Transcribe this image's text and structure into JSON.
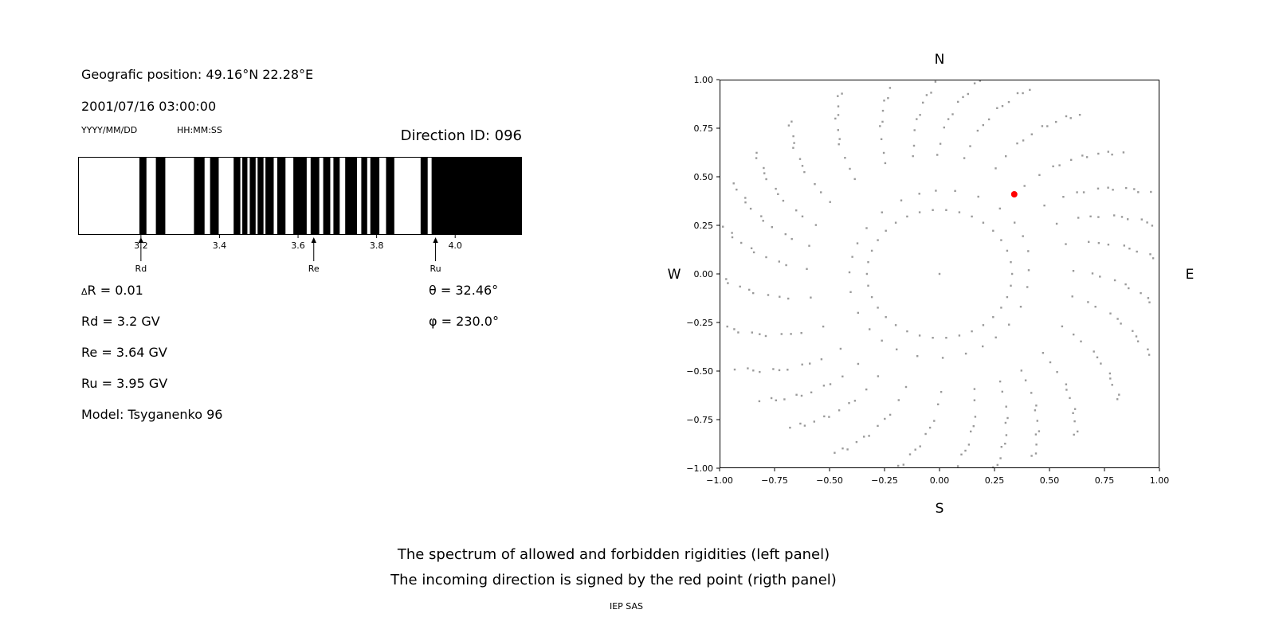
{
  "left_panel": {
    "geo_position": "Geografic position: 49.16°N 22.28°E",
    "datetime": "2001/07/16 03:00:00",
    "date_format_hint": "YYYY/MM/DD",
    "time_format_hint": "HH:MM:SS",
    "direction_id": "Direction ID: 096",
    "delta_r": "ΔR = 0.01",
    "rd": "Rd = 3.2 GV",
    "re": "Re = 3.64 GV",
    "ru": "Ru = 3.95 GV",
    "model": "Model: Tsyganenko 96",
    "theta": "θ = 32.46°",
    "phi": "φ = 230.0°"
  },
  "caption": {
    "line1": "The spectrum of allowed and forbidden rigidities (left panel)",
    "line2": "The incoming direction is signed by the red point (rigth panel)",
    "credit": "IEP SAS"
  },
  "chart_data": [
    {
      "type": "bar",
      "description": "Binary rigidity spectrum: black bands over white background, rigidity in GV on x axis",
      "xlim": [
        3.04,
        4.17
      ],
      "xticks": [
        3.2,
        3.4,
        3.6,
        3.8,
        4.0
      ],
      "xtick_labels": [
        "3.2",
        "3.4",
        "3.6",
        "3.8",
        "4.0"
      ],
      "black_intervals": [
        [
          3.196,
          3.214
        ],
        [
          3.238,
          3.262
        ],
        [
          3.335,
          3.362
        ],
        [
          3.376,
          3.398
        ],
        [
          3.436,
          3.453
        ],
        [
          3.458,
          3.471
        ],
        [
          3.477,
          3.492
        ],
        [
          3.497,
          3.512
        ],
        [
          3.517,
          3.538
        ],
        [
          3.547,
          3.568
        ],
        [
          3.588,
          3.622
        ],
        [
          3.632,
          3.654
        ],
        [
          3.664,
          3.682
        ],
        [
          3.69,
          3.706
        ],
        [
          3.72,
          3.75
        ],
        [
          3.761,
          3.776
        ],
        [
          3.784,
          3.807
        ],
        [
          3.824,
          3.845
        ],
        [
          3.912,
          3.93
        ],
        [
          3.94,
          4.17
        ]
      ],
      "cutoffs": [
        {
          "label": "Rd",
          "value": 3.2
        },
        {
          "label": "Re",
          "value": 3.64
        },
        {
          "label": "Ru",
          "value": 3.95
        }
      ]
    },
    {
      "type": "scatter",
      "description": "Direction map: gray dot trails radiating from center, red point marks incoming direction",
      "xlim": [
        -1.0,
        1.0
      ],
      "ylim": [
        -1.0,
        1.0
      ],
      "xticks": [
        -1.0,
        -0.75,
        -0.5,
        -0.25,
        0.0,
        0.25,
        0.5,
        0.75,
        1.0
      ],
      "yticks": [
        -1.0,
        -0.75,
        -0.5,
        -0.25,
        0.0,
        0.25,
        0.5,
        0.75,
        1.0
      ],
      "xtick_labels": [
        "−1.00",
        "−0.75",
        "−0.50",
        "−0.25",
        "0.00",
        "0.25",
        "0.50",
        "0.75",
        "1.00"
      ],
      "ytick_labels": [
        "−1.00",
        "−0.75",
        "−0.50",
        "−0.25",
        "0.00",
        "0.25",
        "0.50",
        "0.75",
        "1.00"
      ],
      "direction_labels": {
        "top": "N",
        "bottom": "S",
        "left": "W",
        "right": "E"
      },
      "dot_color": "#9a9a9a",
      "red_point": {
        "x": 0.34,
        "y": 0.41,
        "color": "#ff0000"
      },
      "pattern": {
        "center_dot": [
          0,
          0
        ],
        "inner_ring": {
          "radius": 0.33,
          "count": 34
        },
        "rays": {
          "count": 28,
          "start_radius": 0.42,
          "end_radius": 1.04,
          "dots_per_ray": 12,
          "density_exponent": 0.5,
          "curvature_deg": 14
        }
      }
    }
  ]
}
